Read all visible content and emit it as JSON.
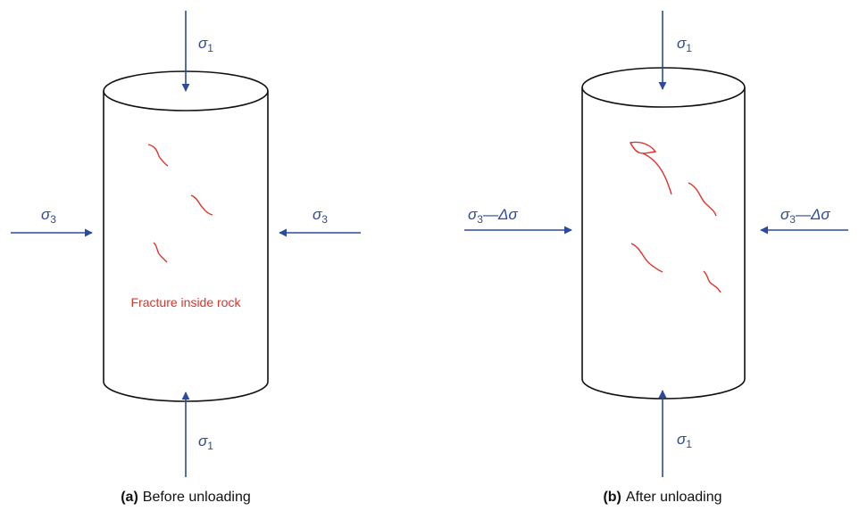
{
  "panels": [
    {
      "caption": {
        "label": "(a)",
        "text": "Before unloading"
      },
      "top_load": {
        "symbol": "σ",
        "subscript": "1"
      },
      "bottom_load": {
        "symbol": "σ",
        "subscript": "1"
      },
      "left_load": {
        "symbol": "σ",
        "subscript": "3"
      },
      "right_load": {
        "symbol": "σ",
        "subscript": "3"
      },
      "annotation": "Fracture inside rock"
    },
    {
      "caption": {
        "label": "(b)",
        "text": "After unloading"
      },
      "top_load": {
        "symbol": "σ",
        "subscript": "1"
      },
      "bottom_load": {
        "symbol": "σ",
        "subscript": "1"
      },
      "left_load": {
        "symbol": "σ",
        "subscript": "3",
        "rest": "—Δσ"
      },
      "right_load": {
        "symbol": "σ",
        "subscript": "3",
        "rest": "—Δσ"
      }
    }
  ]
}
